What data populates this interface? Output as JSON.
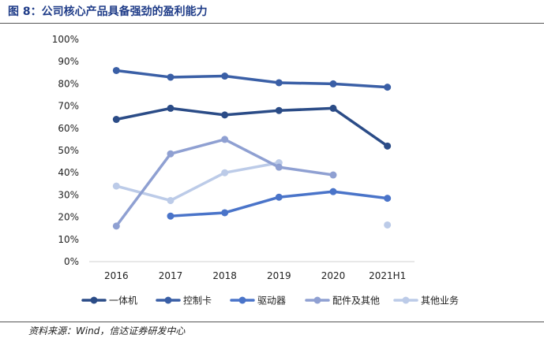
{
  "figure": {
    "title": "图 8：公司核心产品具备强劲的盈利能力",
    "source": "资料来源：Wind，信达证券研发中心"
  },
  "chart_data": {
    "type": "line",
    "title": "",
    "xlabel": "",
    "ylabel": "",
    "categories": [
      "2016",
      "2017",
      "2018",
      "2019",
      "2020",
      "2021H1"
    ],
    "ylim": [
      0,
      100
    ],
    "yticks": [
      "0%",
      "10%",
      "20%",
      "30%",
      "40%",
      "50%",
      "60%",
      "70%",
      "80%",
      "90%",
      "100%"
    ],
    "grid": false,
    "legend_position": "bottom",
    "series": [
      {
        "name": "一体机",
        "color": "#2b4c87",
        "values": [
          64,
          69,
          66,
          68,
          69,
          52
        ]
      },
      {
        "name": "控制卡",
        "color": "#3a5fa6",
        "values": [
          86,
          83,
          83.5,
          80.5,
          80,
          78.5
        ]
      },
      {
        "name": "驱动器",
        "color": "#4a74c9",
        "values": [
          null,
          20.5,
          22,
          29,
          31.5,
          28.5
        ]
      },
      {
        "name": "配件及其他",
        "color": "#8fa0d2",
        "values": [
          16,
          48.5,
          55,
          42.5,
          39,
          null
        ]
      },
      {
        "name": "其他业务",
        "color": "#bccbe8",
        "values": [
          34,
          27.5,
          40,
          44.5,
          null,
          16.5
        ]
      }
    ]
  }
}
